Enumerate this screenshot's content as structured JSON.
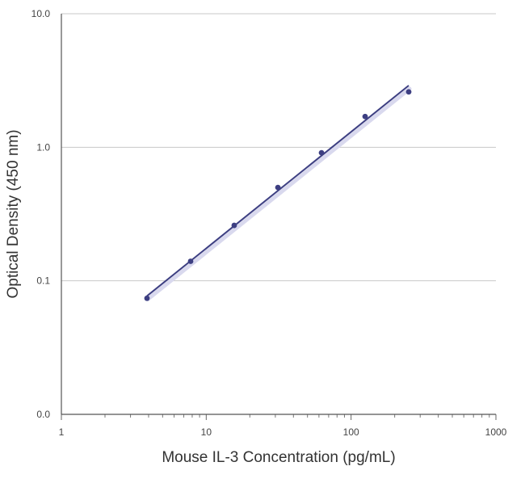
{
  "chart_data": {
    "type": "scatter",
    "title": "",
    "xlabel": "Mouse IL-3 Concentration (pg/mL)",
    "ylabel": "Optical Density (450 nm)",
    "x_scale": "log",
    "y_scale": "log",
    "xlim": [
      1,
      1000
    ],
    "ylim": [
      0.01,
      10
    ],
    "x_ticks": [
      1,
      10,
      100,
      1000
    ],
    "x_tick_labels": [
      "1",
      "10",
      "100",
      "1000"
    ],
    "y_ticks": [
      0.01,
      0.1,
      1,
      10
    ],
    "y_tick_labels": [
      "0.0",
      "0.1",
      "1.0",
      "10.0"
    ],
    "grid": "horizontal",
    "legend": "none",
    "series": [
      {
        "x": [
          3.9,
          7.8,
          15.6,
          31.25,
          62.5,
          125,
          250
        ],
        "y": [
          0.074,
          0.14,
          0.26,
          0.5,
          0.91,
          1.7,
          2.6
        ],
        "color": "#3d3f82"
      }
    ],
    "fit_line": {
      "x": [
        3.9,
        250
      ],
      "y": [
        0.077,
        2.9
      ],
      "color": "#3d3f82"
    }
  }
}
